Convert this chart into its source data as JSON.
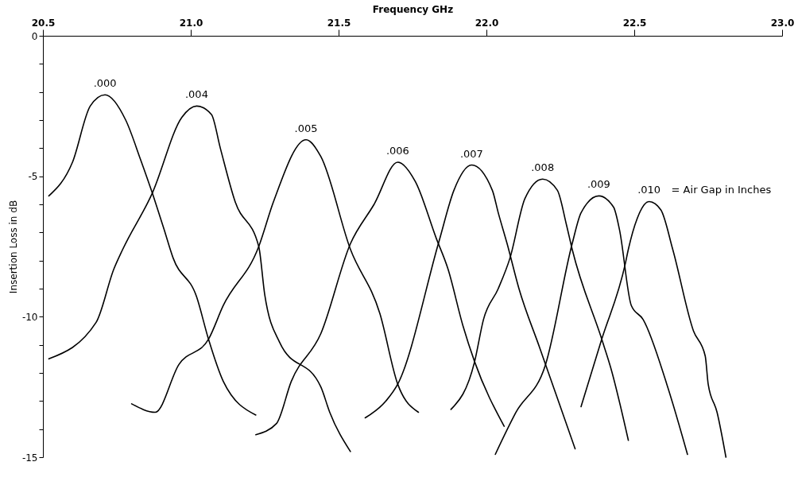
{
  "chart_data": {
    "type": "line",
    "xlabel": "Frequency GHz",
    "ylabel": "Insertion Loss in dB",
    "xlim": [
      20.5,
      23.0
    ],
    "xticks": [
      {
        "value": 20.5,
        "label": "20.5"
      },
      {
        "value": 21.0,
        "label": "21.0"
      },
      {
        "value": 21.5,
        "label": "21.5"
      },
      {
        "value": 22.0,
        "label": "22.0"
      },
      {
        "value": 22.5,
        "label": "22.5"
      },
      {
        "value": 23.0,
        "label": "23.0"
      }
    ],
    "ylim": [
      -15,
      0
    ],
    "yticks": [
      0,
      {
        "value": -1,
        "label": null
      },
      {
        "value": -2,
        "label": null
      },
      {
        "value": -3,
        "label": null
      },
      {
        "value": -4,
        "label": null
      },
      -5,
      {
        "value": -6,
        "label": null
      },
      {
        "value": -7,
        "label": null
      },
      {
        "value": -8,
        "label": null
      },
      {
        "value": -9,
        "label": null
      },
      -10,
      {
        "value": -11,
        "label": null
      },
      {
        "value": -12,
        "label": null
      },
      {
        "value": -13,
        "label": null
      },
      {
        "value": -14,
        "label": null
      },
      -15
    ],
    "grid": false,
    "legend": false,
    "annotations": [
      "= Air Gap in Inches"
    ],
    "series": [
      {
        "name": ".000",
        "color": "#000000",
        "x": [
          20.52,
          20.6,
          20.66,
          20.71,
          20.78,
          20.83,
          20.87,
          20.91,
          20.94,
          21.02,
          21.06,
          21.11,
          21.22
        ],
        "values": [
          -5.7,
          -4.5,
          -2.5,
          -2.1,
          -3.0,
          -4.4,
          -5.6,
          -6.9,
          -7.9,
          -9.3,
          -10.8,
          -12.3,
          -13.5
        ]
      },
      {
        "name": ".004",
        "color": "#000000",
        "x": [
          20.52,
          20.68,
          20.74,
          20.77,
          20.87,
          20.97,
          21.02,
          21.07,
          21.1,
          21.15,
          21.23,
          21.25,
          21.3,
          21.44,
          21.47,
          21.54
        ],
        "values": [
          -11.5,
          -10.2,
          -8.3,
          -7.6,
          -5.6,
          -2.9,
          -2.5,
          -2.8,
          -4.0,
          -5.9,
          -7.5,
          -9.2,
          -10.9,
          -12.5,
          -13.4,
          -14.8
        ]
      },
      {
        "name": ".005",
        "color": "#000000",
        "x": [
          20.8,
          20.88,
          20.96,
          21.06,
          21.11,
          21.23,
          21.28,
          21.39,
          21.44,
          21.54,
          21.64,
          21.7,
          21.77
        ],
        "values": [
          -13.1,
          -13.4,
          -11.7,
          -10.8,
          -9.6,
          -7.5,
          -5.9,
          -3.7,
          -4.3,
          -7.6,
          -9.9,
          -12.4,
          -13.4
        ]
      },
      {
        "name": ".006",
        "color": "#000000",
        "x": [
          21.22,
          21.29,
          21.34,
          21.44,
          21.54,
          21.62,
          21.7,
          21.76,
          21.83,
          21.87,
          21.92,
          21.96,
          22.06
        ],
        "values": [
          -14.2,
          -13.8,
          -12.3,
          -10.6,
          -7.4,
          -6.0,
          -4.5,
          -5.2,
          -7.2,
          -8.3,
          -10.3,
          -11.6,
          -13.9
        ]
      },
      {
        "name": ".007",
        "color": "#000000",
        "x": [
          21.59,
          21.66,
          21.7,
          21.84,
          21.89,
          21.95,
          22.02,
          22.04,
          22.07,
          22.11,
          22.18,
          22.2,
          22.3
        ],
        "values": [
          -13.6,
          -13.0,
          -12.4,
          -7.3,
          -5.5,
          -4.6,
          -5.5,
          -6.3,
          -7.4,
          -9.0,
          -11.1,
          -11.7,
          -14.7
        ]
      },
      {
        "name": ".008",
        "color": "#000000",
        "x": [
          21.88,
          21.96,
          21.99,
          22.04,
          22.08,
          22.13,
          22.19,
          22.24,
          22.27,
          22.29,
          22.39,
          22.42,
          22.48
        ],
        "values": [
          -13.3,
          -11.6,
          -10.1,
          -9.0,
          -7.9,
          -5.8,
          -5.1,
          -5.5,
          -6.7,
          -7.6,
          -10.8,
          -11.8,
          -14.4
        ]
      },
      {
        "name": ".009",
        "color": "#000000",
        "x": [
          22.03,
          22.1,
          22.2,
          22.29,
          22.32,
          22.38,
          22.43,
          22.45,
          22.49,
          22.53,
          22.61,
          22.68
        ],
        "values": [
          -14.9,
          -13.4,
          -11.7,
          -7.4,
          -6.3,
          -5.7,
          -6.1,
          -6.9,
          -9.6,
          -10.1,
          -12.4,
          -14.9
        ]
      },
      {
        "name": ".010",
        "color": "#000000",
        "x": [
          22.32,
          22.39,
          22.47,
          22.48,
          22.51,
          22.55,
          22.59,
          22.63,
          22.7,
          22.74,
          22.75,
          22.78,
          22.81
        ],
        "values": [
          -13.2,
          -10.8,
          -8.1,
          -7.6,
          -6.5,
          -5.9,
          -6.2,
          -7.6,
          -10.5,
          -11.4,
          -12.4,
          -13.4,
          -15.0
        ]
      }
    ]
  }
}
